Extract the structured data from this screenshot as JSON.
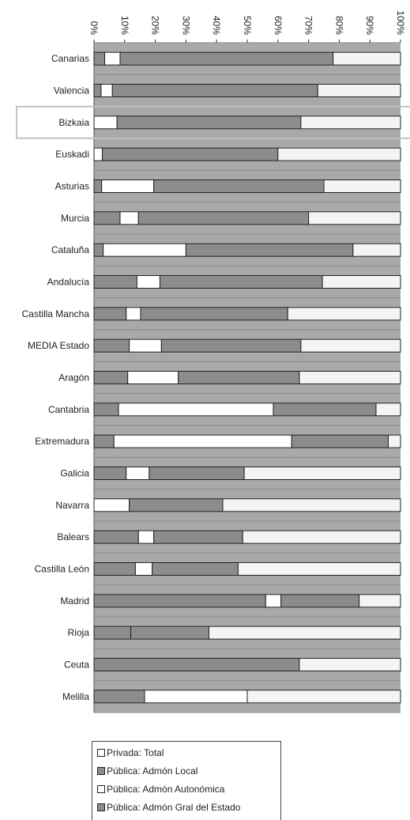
{
  "chart_data": {
    "type": "bar",
    "orientation": "horizontal",
    "stacked": "100%",
    "xlim": [
      0,
      100
    ],
    "x_ticks": [
      "0%",
      "10%",
      "20%",
      "30%",
      "40%",
      "50%",
      "60%",
      "70%",
      "80%",
      "90%",
      "100%"
    ],
    "highlighted_category": "Bizkaia",
    "categories": [
      "Canarias",
      "Valencia",
      "Bizkaia",
      "Euskadi",
      "Asturias",
      "Murcia",
      "Cataluña",
      "Andalucía",
      "Castilla Mancha",
      "MEDIA Estado",
      "Aragón",
      "Cantabria",
      "Extremadura",
      "Galicia",
      "Navarra",
      "Balears",
      "Castilla León",
      "Madrid",
      "Rioja",
      "Ceuta",
      "Melilla"
    ],
    "series": [
      {
        "name": "Pública: Admón Gral del Estado",
        "color": "#8c8c8c",
        "values": [
          3.5,
          2.3,
          0,
          0,
          2.5,
          8.5,
          3,
          14,
          10.5,
          11.5,
          11,
          8,
          6.5,
          10.5,
          0,
          14.5,
          13.5,
          56,
          12,
          67,
          16.5
        ]
      },
      {
        "name": "Privada: Total",
        "color": "#ffffff",
        "values": [
          5,
          3.7,
          7.5,
          2.7,
          17,
          6,
          27,
          7.5,
          4.7,
          10.5,
          16.5,
          50.5,
          58,
          7.5,
          11.5,
          5,
          5.5,
          5,
          0,
          0,
          33.5
        ]
      },
      {
        "name": "Pública: Admón Local",
        "color": "#8c8c8c",
        "values": [
          69.5,
          67,
          60,
          57.3,
          55.5,
          55.5,
          54.5,
          53,
          48,
          45.5,
          39.5,
          33.5,
          31.5,
          31,
          30.5,
          29,
          28,
          25.5,
          25.5,
          0,
          0
        ]
      },
      {
        "name": "Pública: Admón Autonómica",
        "color": "#f4f4f4",
        "values": [
          22,
          27,
          32.5,
          40,
          25,
          30,
          15.5,
          25.5,
          36.8,
          32.5,
          33,
          8,
          4,
          51,
          58,
          51.5,
          53,
          13.5,
          62.5,
          33,
          50
        ]
      }
    ],
    "legend": {
      "position": "bottom",
      "entries": [
        "Privada: Total",
        "Pública: Admón Local",
        "Pública: Admón Autonómica",
        "Pública: Admón Gral del Estado"
      ]
    }
  }
}
